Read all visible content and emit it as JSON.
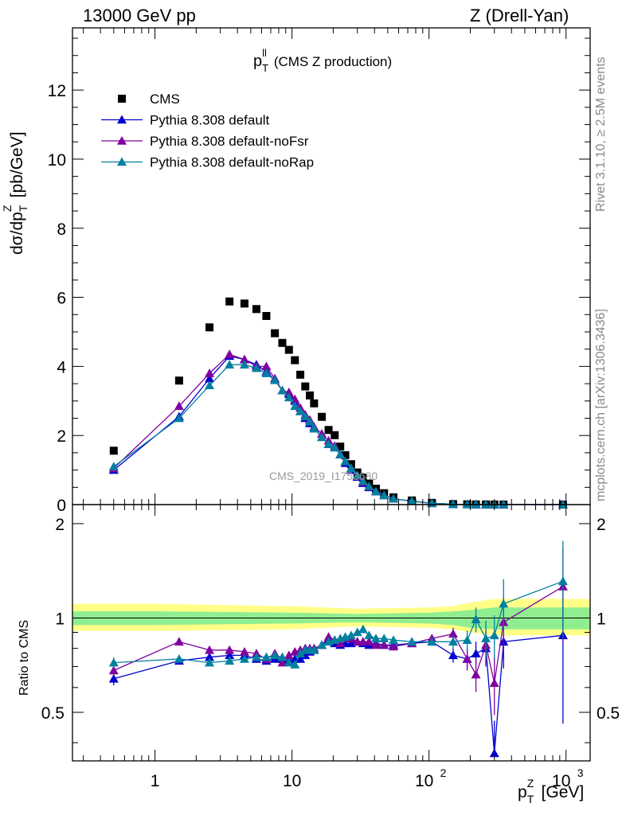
{
  "header": {
    "left": "13000 GeV pp",
    "right": "Z (Drell-Yan)"
  },
  "side_labels": {
    "top": "Rivet 3.1.10, ≥ 2.5M events",
    "bottom": "mcplots.cern.ch [arXiv:1306.3436]"
  },
  "watermark": "CMS_2019_I1753680",
  "chart_data": [
    {
      "type": "scatter",
      "title_main": "p",
      "title_sup": "ll",
      "title_sub": "T",
      "title_rest": " (CMS Z production)",
      "ylabel": "dσ/dp",
      "ylabel_sup": "Z",
      "ylabel_sub": "T",
      "ylabel_units": " [pb/GeV]",
      "xscale": "log",
      "xlim": [
        0.25,
        1500
      ],
      "ylim": [
        0,
        13.8
      ],
      "yticks": [
        0,
        2,
        4,
        6,
        8,
        10,
        12
      ],
      "legend_position": "top-left",
      "series": [
        {
          "name": "CMS",
          "color": "#000000",
          "marker": "square",
          "x": [
            0.5,
            1.5,
            2.5,
            3.5,
            4.5,
            5.5,
            6.5,
            7.5,
            8.5,
            9.5,
            10.5,
            11.5,
            12.5,
            13.5,
            14.5,
            16.5,
            18.5,
            20.5,
            22.5,
            24.5,
            27,
            30,
            33,
            36.5,
            41,
            47,
            55,
            75,
            105,
            150,
            190,
            220,
            260,
            300,
            350,
            950
          ],
          "y": [
            1.56,
            3.59,
            5.13,
            5.88,
            5.82,
            5.66,
            5.46,
            4.96,
            4.68,
            4.48,
            4.18,
            3.76,
            3.42,
            3.16,
            2.93,
            2.54,
            2.16,
            2.01,
            1.68,
            1.43,
            1.17,
            0.93,
            0.78,
            0.61,
            0.46,
            0.33,
            0.21,
            0.12,
            0.05,
            0.015,
            0.008,
            0.005,
            0.004,
            0.003,
            0.002,
            0.0002
          ]
        },
        {
          "name": "Pythia 8.308 default",
          "color": "#0000d0",
          "marker": "triangle",
          "x": [
            0.5,
            1.5,
            2.5,
            3.5,
            4.5,
            5.5,
            6.5,
            7.5,
            8.5,
            9.5,
            10.5,
            11.5,
            12.5,
            13.5,
            14.5,
            16.5,
            18.5,
            20.5,
            22.5,
            24.5,
            27,
            30,
            33,
            36.5,
            41,
            47,
            55,
            75,
            105,
            150,
            190,
            220,
            260,
            300,
            350,
            950
          ],
          "y": [
            1.0,
            2.55,
            3.65,
            4.3,
            4.2,
            4.05,
            3.85,
            3.6,
            3.3,
            3.2,
            3.0,
            2.7,
            2.5,
            2.35,
            2.2,
            1.95,
            1.75,
            1.65,
            1.45,
            1.2,
            1.0,
            0.8,
            0.62,
            0.5,
            0.38,
            0.27,
            0.17,
            0.1,
            0.04,
            0.012,
            0.006,
            0.004,
            0.003,
            0.002,
            0.0015,
            0.0002
          ]
        },
        {
          "name": "Pythia 8.308 default-noFsr",
          "color": "#8000a0",
          "marker": "triangle",
          "x": [
            0.5,
            1.5,
            2.5,
            3.5,
            4.5,
            5.5,
            6.5,
            7.5,
            8.5,
            9.5,
            10.5,
            11.5,
            12.5,
            13.5,
            14.5,
            16.5,
            18.5,
            20.5,
            22.5,
            24.5,
            27,
            30,
            33,
            36.5,
            41,
            47,
            55,
            75,
            105,
            150,
            190,
            220,
            260,
            300,
            350,
            950
          ],
          "y": [
            1.05,
            2.85,
            3.8,
            4.35,
            4.2,
            4.0,
            4.0,
            3.65,
            3.3,
            3.25,
            3.05,
            2.8,
            2.6,
            2.45,
            2.25,
            2.05,
            1.85,
            1.7,
            1.45,
            1.25,
            1.05,
            0.82,
            0.65,
            0.52,
            0.38,
            0.27,
            0.17,
            0.1,
            0.04,
            0.012,
            0.006,
            0.004,
            0.003,
            0.002,
            0.0015,
            0.0002
          ]
        },
        {
          "name": "Pythia 8.308 default-noRap",
          "color": "#0080a0",
          "marker": "triangle",
          "x": [
            0.5,
            1.5,
            2.5,
            3.5,
            4.5,
            5.5,
            6.5,
            7.5,
            8.5,
            9.5,
            10.5,
            11.5,
            12.5,
            13.5,
            14.5,
            16.5,
            18.5,
            20.5,
            22.5,
            24.5,
            27,
            30,
            33,
            36.5,
            41,
            47,
            55,
            75,
            105,
            150,
            190,
            220,
            260,
            300,
            350,
            950
          ],
          "y": [
            1.1,
            2.5,
            3.45,
            4.05,
            4.05,
            3.95,
            3.8,
            3.6,
            3.3,
            3.1,
            2.85,
            2.7,
            2.55,
            2.4,
            2.2,
            1.95,
            1.75,
            1.65,
            1.45,
            1.25,
            1.05,
            0.85,
            0.68,
            0.53,
            0.38,
            0.27,
            0.17,
            0.1,
            0.04,
            0.012,
            0.006,
            0.004,
            0.003,
            0.002,
            0.0015,
            0.0002
          ]
        }
      ]
    },
    {
      "type": "line",
      "ylabel": "Ratio to CMS",
      "xlabel_main": "p",
      "xlabel_sup": "Z",
      "xlabel_sub": "T",
      "xlabel_units": " [GeV]",
      "xscale": "log",
      "xlim": [
        0.25,
        1500
      ],
      "ylim": [
        0.35,
        2.3
      ],
      "xticks": [
        {
          "value": 1,
          "label": "1"
        },
        {
          "value": 10,
          "label": "10"
        },
        {
          "value": 100,
          "label": "10",
          "sup": "2"
        },
        {
          "value": 1000,
          "label": "10",
          "sup": "3"
        }
      ],
      "yticks": [
        0.5,
        1,
        2
      ],
      "band_inner_color": "#90ee90",
      "band_outer_color": "#ffff88",
      "series": [
        {
          "name": "Pythia 8.308 default",
          "color": "#0000d0",
          "x": [
            0.5,
            1.5,
            2.5,
            3.5,
            4.5,
            5.5,
            6.5,
            7.5,
            8.5,
            9.5,
            10.5,
            11.5,
            12.5,
            13.5,
            14.5,
            16.5,
            18.5,
            20.5,
            22.5,
            24.5,
            27,
            30,
            33,
            36.5,
            41,
            47,
            55,
            75,
            105,
            150,
            190,
            220,
            260,
            300,
            350,
            950
          ],
          "y": [
            0.64,
            0.73,
            0.75,
            0.76,
            0.76,
            0.74,
            0.73,
            0.74,
            0.74,
            0.73,
            0.74,
            0.74,
            0.76,
            0.78,
            0.79,
            0.82,
            0.85,
            0.83,
            0.82,
            0.83,
            0.83,
            0.84,
            0.83,
            0.82,
            0.83,
            0.82,
            0.82,
            0.83,
            0.84,
            0.76,
            0.74,
            0.77,
            0.8,
            0.37,
            0.84,
            0.88
          ],
          "err": [
            0.03,
            0.01,
            0.01,
            0.01,
            0.01,
            0.01,
            0.01,
            0.01,
            0.01,
            0.01,
            0.01,
            0.01,
            0.01,
            0.01,
            0.01,
            0.01,
            0.01,
            0.01,
            0.01,
            0.01,
            0.01,
            0.01,
            0.01,
            0.01,
            0.01,
            0.01,
            0.01,
            0.01,
            0.02,
            0.04,
            0.05,
            0.07,
            0.1,
            0.1,
            0.15,
            0.42
          ]
        },
        {
          "name": "Pythia 8.308 default-noFsr",
          "color": "#8000a0",
          "x": [
            0.5,
            1.5,
            2.5,
            3.5,
            4.5,
            5.5,
            6.5,
            7.5,
            8.5,
            9.5,
            10.5,
            11.5,
            12.5,
            13.5,
            14.5,
            16.5,
            18.5,
            20.5,
            22.5,
            24.5,
            27,
            30,
            33,
            36.5,
            41,
            47,
            55,
            75,
            105,
            150,
            190,
            220,
            260,
            300,
            350,
            950
          ],
          "y": [
            0.68,
            0.84,
            0.79,
            0.79,
            0.78,
            0.77,
            0.74,
            0.77,
            0.72,
            0.76,
            0.78,
            0.79,
            0.8,
            0.8,
            0.8,
            0.82,
            0.87,
            0.85,
            0.83,
            0.86,
            0.86,
            0.84,
            0.84,
            0.84,
            0.82,
            0.82,
            0.81,
            0.83,
            0.86,
            0.89,
            0.74,
            0.66,
            0.82,
            0.62,
            0.97,
            1.26
          ],
          "err": [
            0.03,
            0.02,
            0.01,
            0.01,
            0.01,
            0.01,
            0.01,
            0.01,
            0.01,
            0.01,
            0.01,
            0.01,
            0.01,
            0.01,
            0.01,
            0.01,
            0.01,
            0.01,
            0.01,
            0.01,
            0.01,
            0.01,
            0.01,
            0.01,
            0.01,
            0.01,
            0.01,
            0.01,
            0.02,
            0.04,
            0.06,
            0.08,
            0.1,
            0.13,
            0.2,
            0.42
          ]
        },
        {
          "name": "Pythia 8.308 default-noRap",
          "color": "#0080a0",
          "x": [
            0.5,
            1.5,
            2.5,
            3.5,
            4.5,
            5.5,
            6.5,
            7.5,
            8.5,
            9.5,
            10.5,
            11.5,
            12.5,
            13.5,
            14.5,
            16.5,
            18.5,
            20.5,
            22.5,
            24.5,
            27,
            30,
            33,
            36.5,
            41,
            47,
            55,
            75,
            105,
            150,
            190,
            220,
            260,
            300,
            350,
            950
          ],
          "y": [
            0.72,
            0.74,
            0.72,
            0.73,
            0.74,
            0.75,
            0.75,
            0.76,
            0.75,
            0.72,
            0.71,
            0.77,
            0.79,
            0.79,
            0.79,
            0.82,
            0.84,
            0.85,
            0.86,
            0.87,
            0.88,
            0.9,
            0.92,
            0.88,
            0.86,
            0.86,
            0.85,
            0.84,
            0.84,
            0.84,
            0.85,
            0.99,
            0.86,
            0.88,
            1.11,
            1.31
          ],
          "err": [
            0.03,
            0.01,
            0.01,
            0.01,
            0.01,
            0.01,
            0.01,
            0.01,
            0.01,
            0.01,
            0.01,
            0.01,
            0.01,
            0.01,
            0.01,
            0.01,
            0.01,
            0.01,
            0.01,
            0.01,
            0.01,
            0.01,
            0.01,
            0.01,
            0.01,
            0.01,
            0.01,
            0.01,
            0.02,
            0.04,
            0.06,
            0.09,
            0.12,
            0.14,
            0.22,
            0.45
          ]
        }
      ],
      "band": {
        "x": [
          0.25,
          1,
          10,
          30,
          100,
          150,
          200,
          300,
          1500
        ],
        "inner_lo": [
          0.95,
          0.95,
          0.96,
          0.97,
          0.96,
          0.95,
          0.93,
          0.92,
          0.92
        ],
        "inner_hi": [
          1.05,
          1.05,
          1.04,
          1.03,
          1.04,
          1.05,
          1.06,
          1.08,
          1.08
        ],
        "outer_lo": [
          0.91,
          0.91,
          0.92,
          0.94,
          0.93,
          0.92,
          0.9,
          0.88,
          0.88
        ],
        "outer_hi": [
          1.11,
          1.11,
          1.09,
          1.07,
          1.08,
          1.09,
          1.12,
          1.15,
          1.15
        ]
      }
    }
  ]
}
